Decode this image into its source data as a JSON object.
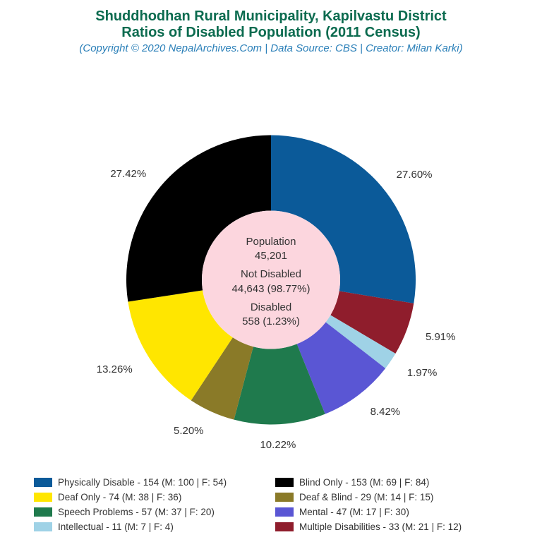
{
  "title": {
    "line1": "Shuddhodhan Rural Municipality, Kapilvastu District",
    "line2": "Ratios of Disabled Population (2011 Census)",
    "color": "#0b6b4f",
    "fontsize": 20
  },
  "subtitle": {
    "text": "(Copyright © 2020 NepalArchives.Com | Data Source: CBS | Creator: Milan Karki)",
    "color": "#2a7fb8",
    "fontsize": 15
  },
  "chart": {
    "type": "donut",
    "outer_radius": 205,
    "inner_radius": 98,
    "center_fill": "#fcd6de",
    "background_color": "#ffffff",
    "start_angle_deg": -90,
    "slices": [
      {
        "label": "Physically Disable",
        "value": 154,
        "pct": 27.6,
        "m": 100,
        "f": 54,
        "color": "#0b5a99"
      },
      {
        "label": "Multiple Disabilities",
        "value": 33,
        "pct": 5.91,
        "m": 21,
        "f": 12,
        "color": "#8f1d2c"
      },
      {
        "label": "Intellectual",
        "value": 11,
        "pct": 1.97,
        "m": 7,
        "f": 4,
        "color": "#9fd2e6"
      },
      {
        "label": "Mental",
        "value": 47,
        "pct": 8.42,
        "m": 17,
        "f": 30,
        "color": "#5a56d4"
      },
      {
        "label": "Speech Problems",
        "value": 57,
        "pct": 10.22,
        "m": 37,
        "f": 20,
        "color": "#1f7a4d"
      },
      {
        "label": "Deaf & Blind",
        "value": 29,
        "pct": 5.2,
        "m": 14,
        "f": 15,
        "color": "#8a7a28"
      },
      {
        "label": "Deaf Only",
        "value": 74,
        "pct": 13.26,
        "m": 38,
        "f": 36,
        "color": "#ffe600"
      },
      {
        "label": "Blind Only",
        "value": 153,
        "pct": 27.42,
        "m": 69,
        "f": 84,
        "color": "#000000"
      }
    ],
    "label_fontsize": 15,
    "label_color": "#333333"
  },
  "center": {
    "line1a": "Population",
    "line1b": "45,201",
    "line2a": "Not Disabled",
    "line2b": "44,643 (98.77%)",
    "line3a": "Disabled",
    "line3b": "558 (1.23%)",
    "fontsize": 15,
    "color": "#333333"
  },
  "legend_order": [
    0,
    7,
    6,
    5,
    4,
    3,
    2,
    1
  ],
  "legend": {
    "fontsize": 13.5,
    "color": "#333333"
  }
}
